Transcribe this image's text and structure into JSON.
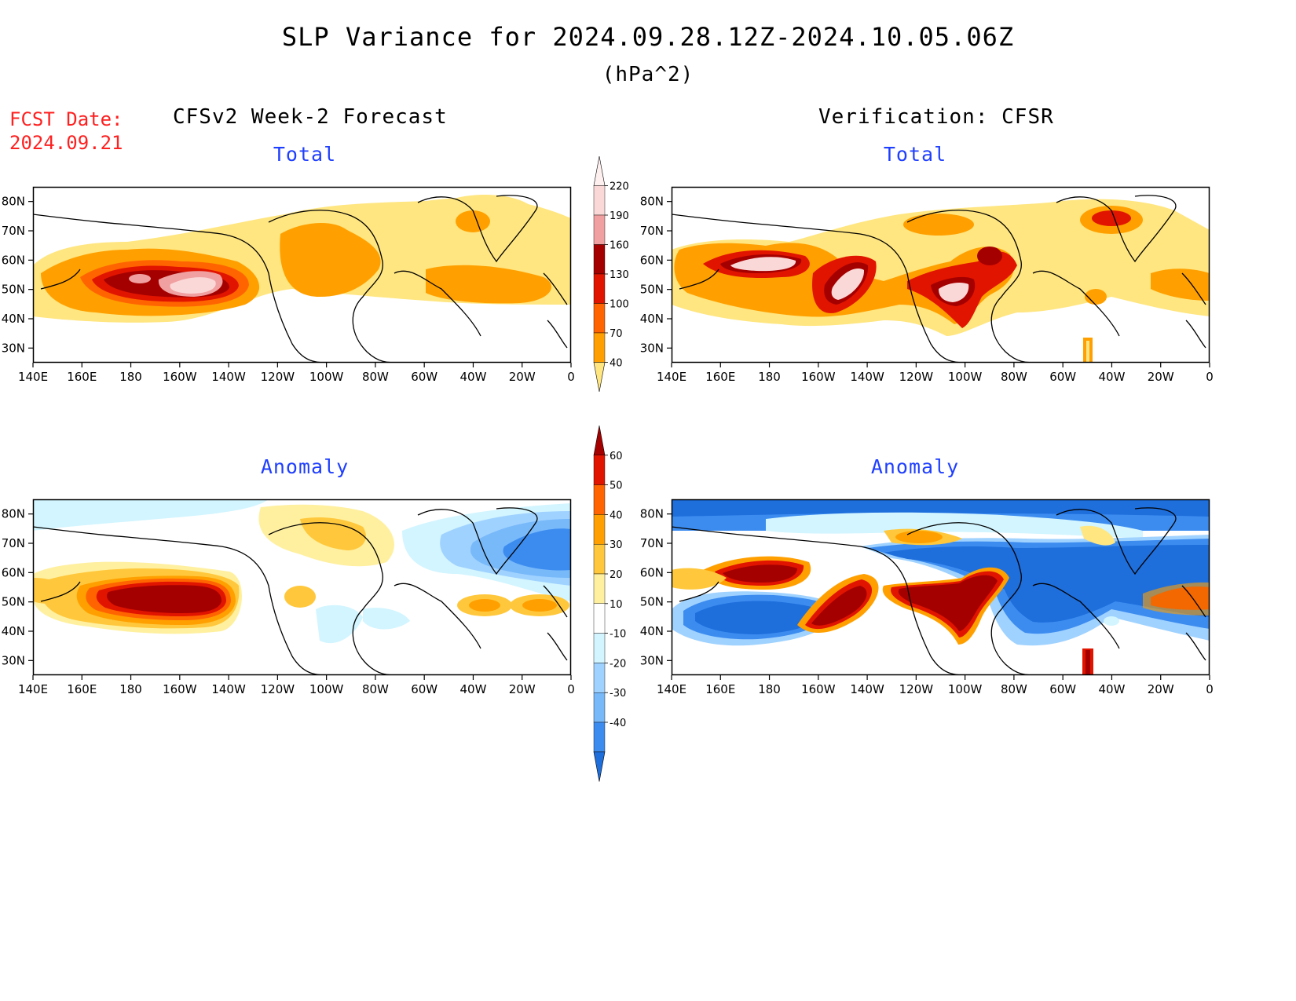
{
  "header": {
    "title": "SLP Variance for 2024.09.28.12Z-2024.10.05.06Z",
    "units": "(hPa^2)",
    "fcst_label": "FCST Date:",
    "fcst_date": "2024.09.21"
  },
  "columns": {
    "left": "CFSv2 Week-2 Forecast",
    "right": "Verification: CFSR"
  },
  "panels": {
    "fc_total": "Total",
    "vf_total": "Total",
    "fc_anom": "Anomaly",
    "vf_anom": "Anomaly"
  },
  "map_axes": {
    "lat_labels": [
      "80N",
      "70N",
      "60N",
      "50N",
      "40N",
      "30N"
    ],
    "lat_values": [
      80,
      70,
      60,
      50,
      40,
      30
    ],
    "lon_labels": [
      "140E",
      "160E",
      "180",
      "160W",
      "140W",
      "120W",
      "100W",
      "80W",
      "60W",
      "40W",
      "20W",
      "0"
    ],
    "lon_values": [
      140,
      160,
      180,
      200,
      220,
      240,
      260,
      280,
      300,
      320,
      340,
      360
    ],
    "lat_range": [
      25,
      85
    ],
    "lon_range": [
      140,
      360
    ]
  },
  "colorbars": {
    "total": {
      "labels": [
        "40",
        "70",
        "100",
        "130",
        "160",
        "190",
        "220"
      ],
      "colors": [
        "#ffe680",
        "#ffa000",
        "#ff6400",
        "#e11400",
        "#a50000",
        "#f0a0a0",
        "#fbd8d8",
        "#fff0f0"
      ]
    },
    "anomaly": {
      "labels": [
        "-40",
        "-30",
        "-20",
        "-10",
        "10",
        "20",
        "30",
        "40",
        "50",
        "60"
      ],
      "colors": [
        "#1e6edc",
        "#3c8cf0",
        "#78b9fa",
        "#a0d2ff",
        "#d2f5ff",
        "#ffffff",
        "#fff0a0",
        "#ffc83c",
        "#ffa000",
        "#ff6400",
        "#e11400",
        "#a50000"
      ]
    }
  }
}
